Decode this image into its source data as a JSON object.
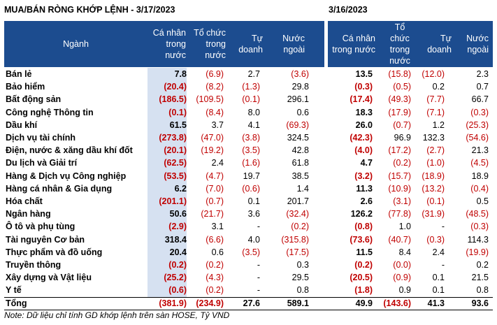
{
  "title_left": "MUA/BÁN RÒNG KHỚP LỆNH - 3/17/2023",
  "title_right": "3/16/2023",
  "headers": {
    "nganh": "Ngành",
    "ca_nhan": "Cá nhân\ntrong\nnước",
    "to_chuc": "Tổ chức\ntrong\nnước",
    "tu_doanh": "Tự\ndoanh",
    "nuoc_ngoai": "Nước\nngoài",
    "ca_nhan_r": "Cá nhân\ntrong nước",
    "to_chuc_r": "Tổ\nchức\ntrong\nnước",
    "tu_doanh_r": "Tự\ndoanh",
    "nuoc_ngoai_r": "Nước\nngoài"
  },
  "rows": [
    {
      "name": "Bán lẻ",
      "v": [
        "7.8",
        "(6.9)",
        "2.7",
        "(3.6)",
        "13.5",
        "(15.8)",
        "(12.0)",
        "2.3"
      ]
    },
    {
      "name": "Bảo hiểm",
      "v": [
        "(20.4)",
        "(8.2)",
        "(1.3)",
        "29.8",
        "(0.3)",
        "(0.5)",
        "0.2",
        "0.7"
      ]
    },
    {
      "name": "Bất động sản",
      "v": [
        "(186.5)",
        "(109.5)",
        "(0.1)",
        "296.1",
        "(17.4)",
        "(49.3)",
        "(7.7)",
        "66.7"
      ]
    },
    {
      "name": "Công nghệ Thông tin",
      "v": [
        "(0.1)",
        "(8.4)",
        "8.0",
        "0.6",
        "18.3",
        "(17.9)",
        "(7.1)",
        "(0.3)"
      ]
    },
    {
      "name": "Dầu khí",
      "v": [
        "61.5",
        "3.7",
        "4.1",
        "(69.3)",
        "26.0",
        "(0.7)",
        "1.2",
        "(25.3)"
      ]
    },
    {
      "name": "Dịch vụ tài chính",
      "v": [
        "(273.8)",
        "(47.0)",
        "(3.8)",
        "324.5",
        "(42.3)",
        "96.9",
        "132.3",
        "(54.6)"
      ]
    },
    {
      "name": "Điện, nước & xăng dầu khí đốt",
      "v": [
        "(20.1)",
        "(19.2)",
        "(3.5)",
        "42.8",
        "(4.0)",
        "(17.2)",
        "(2.7)",
        "21.3"
      ]
    },
    {
      "name": "Du lịch và Giải trí",
      "v": [
        "(62.5)",
        "2.4",
        "(1.6)",
        "61.8",
        "4.7",
        "(0.2)",
        "(1.0)",
        "(4.5)"
      ]
    },
    {
      "name": "Hàng & Dịch vụ Công nghiệp",
      "v": [
        "(53.5)",
        "(4.7)",
        "19.7",
        "38.5",
        "(3.2)",
        "(15.7)",
        "(18.9)",
        "18.9"
      ]
    },
    {
      "name": "Hàng cá nhân & Gia dụng",
      "v": [
        "6.2",
        "(7.0)",
        "(0.6)",
        "1.4",
        "11.3",
        "(10.9)",
        "(13.2)",
        "(0.4)"
      ]
    },
    {
      "name": "Hóa chất",
      "v": [
        "(201.1)",
        "(0.7)",
        "0.1",
        "201.7",
        "2.6",
        "(3.1)",
        "(0.1)",
        "0.5"
      ]
    },
    {
      "name": "Ngân hàng",
      "v": [
        "50.6",
        "(21.7)",
        "3.6",
        "(32.4)",
        "126.2",
        "(77.8)",
        "(31.9)",
        "(48.5)"
      ]
    },
    {
      "name": "Ô tô và phụ tùng",
      "v": [
        "(2.9)",
        "3.1",
        "-",
        "(0.2)",
        "(0.8)",
        "1.0",
        "-",
        "(0.3)"
      ]
    },
    {
      "name": "Tài nguyên Cơ bản",
      "v": [
        "318.4",
        "(6.6)",
        "4.0",
        "(315.8)",
        "(73.6)",
        "(40.7)",
        "(0.3)",
        "114.3"
      ]
    },
    {
      "name": "Thực phẩm và đồ uống",
      "v": [
        "20.4",
        "0.6",
        "(3.5)",
        "(17.5)",
        "11.5",
        "8.4",
        "2.4",
        "(19.9)"
      ]
    },
    {
      "name": "Truyền thông",
      "v": [
        "(0.2)",
        "(0.2)",
        "-",
        "0.3",
        "(0.2)",
        "(0.0)",
        "-",
        "0.2"
      ]
    },
    {
      "name": "Xây dựng và Vật liệu",
      "v": [
        "(25.2)",
        "(4.3)",
        "-",
        "29.5",
        "(20.5)",
        "(0.9)",
        "0.1",
        "21.5"
      ]
    },
    {
      "name": "Y tế",
      "v": [
        "(0.6)",
        "(0.2)",
        "-",
        "0.8",
        "(1.8)",
        "0.9",
        "0.1",
        "0.8"
      ]
    }
  ],
  "total": {
    "name": "Tổng",
    "v": [
      "(381.9)",
      "(234.9)",
      "27.6",
      "589.1",
      "49.9",
      "(143.6)",
      "41.3",
      "93.6"
    ]
  },
  "note": "Note: Dữ liệu chỉ tính GD khớp lệnh trên sàn HOSE, Tỷ VND",
  "colors": {
    "header_bg": "#1c4c8f",
    "highlight_col": "#d6e1f1",
    "negative": "#c00000"
  }
}
